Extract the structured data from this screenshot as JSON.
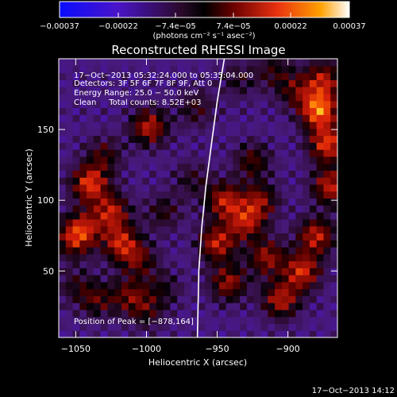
{
  "chart_data": {
    "type": "heatmap",
    "title": "Reconstructed RHESSI Image",
    "xlabel": "Heliocentric X (arcsec)",
    "ylabel": "Heliocentric Y (arcsec)",
    "xlim": [
      -1062,
      -865
    ],
    "ylim": [
      3,
      200
    ],
    "x_ticks": [
      -1050,
      -1000,
      -950,
      -900
    ],
    "x_tick_labels": [
      "−1050",
      "−1000",
      "−950",
      "−900"
    ],
    "y_ticks": [
      50,
      100,
      150
    ],
    "y_tick_labels": [
      "50",
      "100",
      "150"
    ],
    "colorbar": {
      "range": [
        -0.00037,
        0.00037
      ],
      "ticks": [
        -0.00037,
        -0.00022,
        -7.4e-05,
        7.4e-05,
        0.00022,
        0.00037
      ],
      "tick_labels": [
        "−0.00037",
        "−0.00022",
        "−7.4e−05",
        "7.4e−05",
        "0.00022",
        "0.00037"
      ],
      "units": "(photons cm⁻² s⁻¹ asec⁻²)"
    },
    "annotations": {
      "time_range": "17−Oct−2013 05:32:24.000 to 05:35:04.000",
      "detectors": "Detectors: 3F 5F 6F 7F 8F 9F, Att 0",
      "energy": "Energy Range: 25.0 − 50.0 keV",
      "method": "Clean     Total counts: 8.52E+03",
      "peak": "Position of Peak = [−878,164]"
    },
    "limb_curve": [
      [
        -945,
        200
      ],
      [
        -950,
        170
      ],
      [
        -954,
        140
      ],
      [
        -958,
        110
      ],
      [
        -961,
        80
      ],
      [
        -963,
        50
      ],
      [
        -964,
        3
      ]
    ],
    "hotspots": [
      {
        "x": -1040,
        "y": 112,
        "amp": 0.0003
      },
      {
        "x": -1030,
        "y": 132,
        "amp": 0.00014
      },
      {
        "x": -1025,
        "y": 92,
        "amp": 0.00025
      },
      {
        "x": -1018,
        "y": 70,
        "amp": 0.00026
      },
      {
        "x": -1005,
        "y": 58,
        "amp": 0.00016
      },
      {
        "x": -1045,
        "y": 80,
        "amp": 0.00022
      },
      {
        "x": -1052,
        "y": 72,
        "amp": 0.00018
      },
      {
        "x": -1050,
        "y": 40,
        "amp": 0.0001
      },
      {
        "x": -1035,
        "y": 30,
        "amp": 0.00015
      },
      {
        "x": -1012,
        "y": 33,
        "amp": 0.00017
      },
      {
        "x": -1000,
        "y": 22,
        "amp": 0.00012
      },
      {
        "x": -988,
        "y": 38,
        "amp": 0.0001
      },
      {
        "x": -998,
        "y": 152,
        "amp": 0.00025
      },
      {
        "x": -965,
        "y": 165,
        "amp": 0.00012
      },
      {
        "x": -988,
        "y": 92,
        "amp": 0.00012
      },
      {
        "x": -968,
        "y": 115,
        "amp": 0.0001
      },
      {
        "x": -945,
        "y": 100,
        "amp": 0.00025
      },
      {
        "x": -950,
        "y": 70,
        "amp": 0.00026
      },
      {
        "x": -930,
        "y": 85,
        "amp": 0.00024
      },
      {
        "x": -942,
        "y": 42,
        "amp": 0.00022
      },
      {
        "x": -925,
        "y": 128,
        "amp": 0.00016
      },
      {
        "x": -920,
        "y": 100,
        "amp": 0.0002
      },
      {
        "x": -915,
        "y": 60,
        "amp": 0.00022
      },
      {
        "x": -905,
        "y": 30,
        "amp": 0.00025
      },
      {
        "x": -890,
        "y": 50,
        "amp": 0.00028
      },
      {
        "x": -880,
        "y": 75,
        "amp": 0.00026
      },
      {
        "x": -878,
        "y": 164,
        "amp": 0.00037
      },
      {
        "x": -872,
        "y": 140,
        "amp": 0.0003
      },
      {
        "x": -875,
        "y": 185,
        "amp": 0.00024
      },
      {
        "x": -870,
        "y": 110,
        "amp": 0.00026
      },
      {
        "x": -895,
        "y": 178,
        "amp": 0.00015
      },
      {
        "x": -910,
        "y": 192,
        "amp": 0.00012
      },
      {
        "x": -935,
        "y": 185,
        "amp": 0.0001
      }
    ]
  },
  "footer": {
    "timestamp": "17−Oct−2013 14:12"
  }
}
